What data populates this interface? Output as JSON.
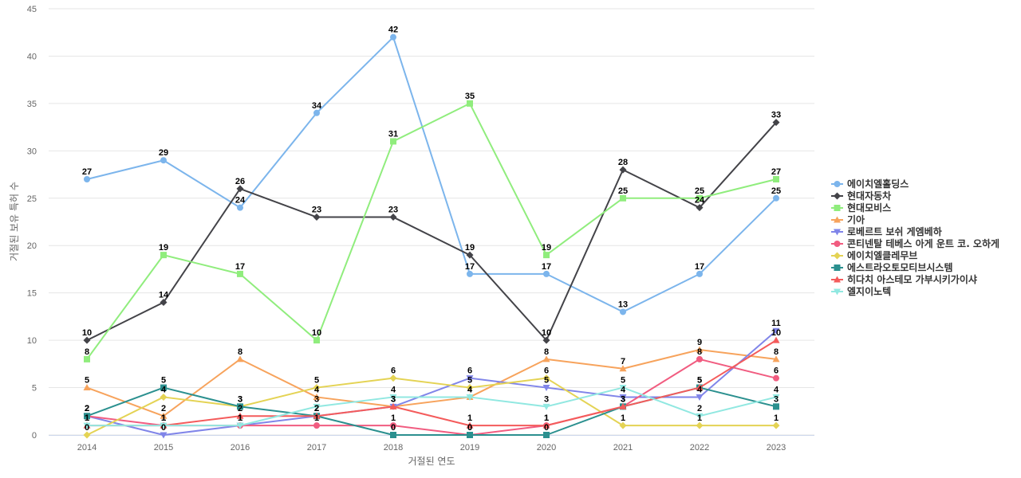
{
  "chart_data": {
    "type": "line",
    "title": "",
    "xlabel": "거절된 연도",
    "ylabel": "거절된 보유 특허 수",
    "ylim": [
      0,
      45
    ],
    "yticks": [
      0,
      5,
      10,
      15,
      20,
      25,
      30,
      35,
      40,
      45
    ],
    "grid": true,
    "legend_position": "right",
    "categories": [
      "2014",
      "2015",
      "2016",
      "2017",
      "2018",
      "2019",
      "2020",
      "2021",
      "2022",
      "2023"
    ],
    "series": [
      {
        "name": "에이치엘홀딩스",
        "color": "#7cb5ec",
        "marker": "circle",
        "values": [
          27,
          29,
          24,
          34,
          42,
          17,
          17,
          13,
          17,
          25
        ]
      },
      {
        "name": "현대자동차",
        "color": "#434348",
        "marker": "diamond",
        "values": [
          10,
          14,
          26,
          23,
          23,
          19,
          10,
          28,
          24,
          33
        ]
      },
      {
        "name": "현대모비스",
        "color": "#90ed7d",
        "marker": "square",
        "values": [
          8,
          19,
          17,
          10,
          31,
          35,
          19,
          25,
          25,
          27
        ]
      },
      {
        "name": "기아",
        "color": "#f7a35c",
        "marker": "triangle",
        "values": [
          5,
          2,
          8,
          4,
          3,
          4,
          8,
          7,
          9,
          8
        ]
      },
      {
        "name": "로베르트 보쉬 게엠베하",
        "color": "#8085e9",
        "marker": "triangle-down",
        "values": [
          2,
          0,
          1,
          2,
          3,
          6,
          5,
          4,
          4,
          11
        ]
      },
      {
        "name": "콘티넨탈 테베스 아게 운트 코. 오하게",
        "color": "#f15c80",
        "marker": "circle",
        "values": [
          2,
          1,
          1,
          1,
          1,
          0,
          1,
          3,
          8,
          6
        ]
      },
      {
        "name": "에이치엘클레무브",
        "color": "#e4d354",
        "marker": "diamond",
        "values": [
          0,
          4,
          3,
          5,
          6,
          5,
          6,
          1,
          1,
          1
        ]
      },
      {
        "name": "에스트라오토모티브시스템",
        "color": "#2b908f",
        "marker": "square",
        "values": [
          2,
          5,
          3,
          2,
          0,
          0,
          0,
          3,
          5,
          3
        ]
      },
      {
        "name": "히다치 아스테모 가부시키가이샤",
        "color": "#f45b5b",
        "marker": "triangle",
        "values": [
          1,
          1,
          2,
          2,
          3,
          1,
          1,
          3,
          5,
          10
        ]
      },
      {
        "name": "엘지이노텍",
        "color": "#91e8e1",
        "marker": "triangle-down",
        "values": [
          1,
          1,
          1,
          3,
          4,
          4,
          3,
          5,
          2,
          4
        ]
      }
    ]
  }
}
